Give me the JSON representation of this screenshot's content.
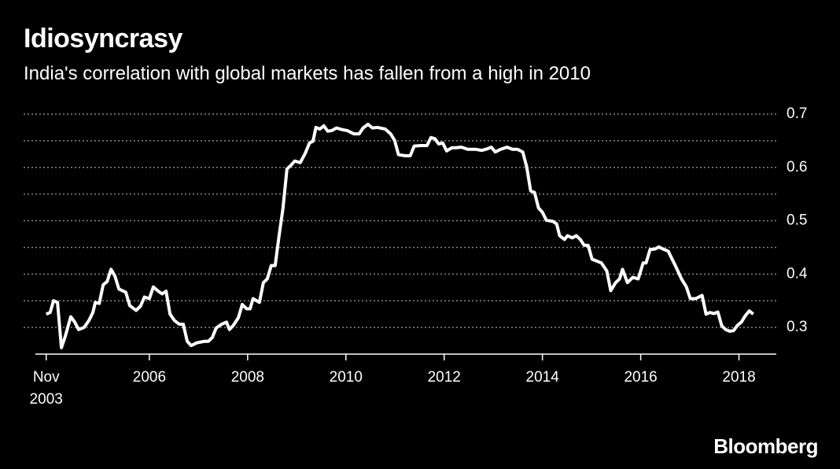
{
  "chart_data": {
    "type": "line",
    "title": "Idiosyncrasy",
    "subtitle": "India's correlation with global markets has fallen from a high in 2010",
    "source": "Bloomberg",
    "x": [
      2003.9,
      2003.98,
      2004.05,
      2004.13,
      2004.21,
      2004.29,
      2004.4,
      2004.48,
      2004.56,
      2004.67,
      2004.77,
      2004.85,
      2004.9,
      2004.98,
      2005.06,
      2005.14,
      2005.22,
      2005.3,
      2005.38,
      2005.52,
      2005.6,
      2005.73,
      2005.82,
      2005.9,
      2006.0,
      2006.08,
      2006.18,
      2006.26,
      2006.34,
      2006.42,
      2006.51,
      2006.61,
      2006.69,
      2006.77,
      2006.85,
      2006.96,
      2007.12,
      2007.2,
      2007.28,
      2007.36,
      2007.47,
      2007.57,
      2007.63,
      2007.71,
      2007.81,
      2007.89,
      2007.98,
      2008.05,
      2008.11,
      2008.24,
      2008.32,
      2008.4,
      2008.48,
      2008.56,
      2008.64,
      2008.72,
      2008.8,
      2008.88,
      2008.96,
      2009.07,
      2009.17,
      2009.26,
      2009.33,
      2009.39,
      2009.47,
      2009.55,
      2009.63,
      2009.71,
      2009.81,
      2009.92,
      2010.03,
      2010.16,
      2010.27,
      2010.35,
      2010.45,
      2010.54,
      2010.64,
      2010.8,
      2010.91,
      2010.99,
      2011.07,
      2011.2,
      2011.31,
      2011.39,
      2011.52,
      2011.65,
      2011.73,
      2011.81,
      2011.89,
      2011.97,
      2012.05,
      2012.16,
      2012.24,
      2012.35,
      2012.48,
      2012.64,
      2012.77,
      2012.88,
      2012.96,
      2013.04,
      2013.15,
      2013.28,
      2013.39,
      2013.49,
      2013.6,
      2013.68,
      2013.76,
      2013.84,
      2013.92,
      2014.0,
      2014.08,
      2014.21,
      2014.29,
      2014.35,
      2014.45,
      2014.51,
      2014.61,
      2014.69,
      2014.77,
      2014.85,
      2014.93,
      2015.01,
      2015.09,
      2015.2,
      2015.31,
      2015.39,
      2015.49,
      2015.57,
      2015.63,
      2015.73,
      2015.84,
      2015.95,
      2016.05,
      2016.11,
      2016.19,
      2016.29,
      2016.37,
      2016.48,
      2016.56,
      2016.64,
      2016.72,
      2016.83,
      2016.93,
      2017.01,
      2017.12,
      2017.25,
      2017.33,
      2017.41,
      2017.49,
      2017.57,
      2017.65,
      2017.73,
      2017.81,
      2017.89,
      2017.97,
      2018.05,
      2018.13,
      2018.21,
      2018.29
    ],
    "series": [
      {
        "color": "#ffffff",
        "values": [
          0.325,
          0.328,
          0.35,
          0.347,
          0.262,
          0.284,
          0.32,
          0.31,
          0.296,
          0.3,
          0.313,
          0.328,
          0.347,
          0.345,
          0.38,
          0.386,
          0.409,
          0.396,
          0.372,
          0.366,
          0.341,
          0.332,
          0.34,
          0.357,
          0.354,
          0.376,
          0.368,
          0.363,
          0.368,
          0.325,
          0.313,
          0.306,
          0.306,
          0.274,
          0.266,
          0.271,
          0.274,
          0.274,
          0.281,
          0.299,
          0.306,
          0.31,
          0.296,
          0.304,
          0.318,
          0.343,
          0.335,
          0.335,
          0.354,
          0.347,
          0.384,
          0.391,
          0.416,
          0.416,
          0.472,
          0.524,
          0.597,
          0.604,
          0.612,
          0.609,
          0.626,
          0.646,
          0.649,
          0.675,
          0.672,
          0.678,
          0.668,
          0.669,
          0.674,
          0.671,
          0.669,
          0.663,
          0.663,
          0.674,
          0.681,
          0.674,
          0.675,
          0.672,
          0.663,
          0.651,
          0.624,
          0.622,
          0.622,
          0.64,
          0.641,
          0.641,
          0.656,
          0.654,
          0.644,
          0.646,
          0.631,
          0.637,
          0.637,
          0.638,
          0.634,
          0.634,
          0.632,
          0.635,
          0.638,
          0.629,
          0.634,
          0.638,
          0.634,
          0.634,
          0.629,
          0.601,
          0.556,
          0.553,
          0.524,
          0.516,
          0.501,
          0.499,
          0.494,
          0.472,
          0.465,
          0.472,
          0.468,
          0.472,
          0.465,
          0.454,
          0.454,
          0.428,
          0.425,
          0.421,
          0.406,
          0.369,
          0.384,
          0.391,
          0.409,
          0.384,
          0.394,
          0.391,
          0.421,
          0.421,
          0.446,
          0.447,
          0.451,
          0.446,
          0.443,
          0.428,
          0.413,
          0.391,
          0.376,
          0.354,
          0.354,
          0.36,
          0.325,
          0.328,
          0.326,
          0.329,
          0.303,
          0.296,
          0.293,
          0.294,
          0.304,
          0.31,
          0.322,
          0.331,
          0.325
        ]
      }
    ],
    "xlim": [
      2003.68,
      2018.76
    ],
    "xticks": [
      {
        "value": 2003.9,
        "label": "Nov 2003"
      },
      2006,
      2008,
      2010,
      2012,
      2014,
      2016,
      2018
    ],
    "ylim": [
      0.25,
      0.7
    ],
    "yticks": [
      0.3,
      0.4,
      0.5,
      0.6,
      0.7
    ],
    "minor_yticks": [
      0.35,
      0.45,
      0.55,
      0.65
    ],
    "grid": true
  }
}
